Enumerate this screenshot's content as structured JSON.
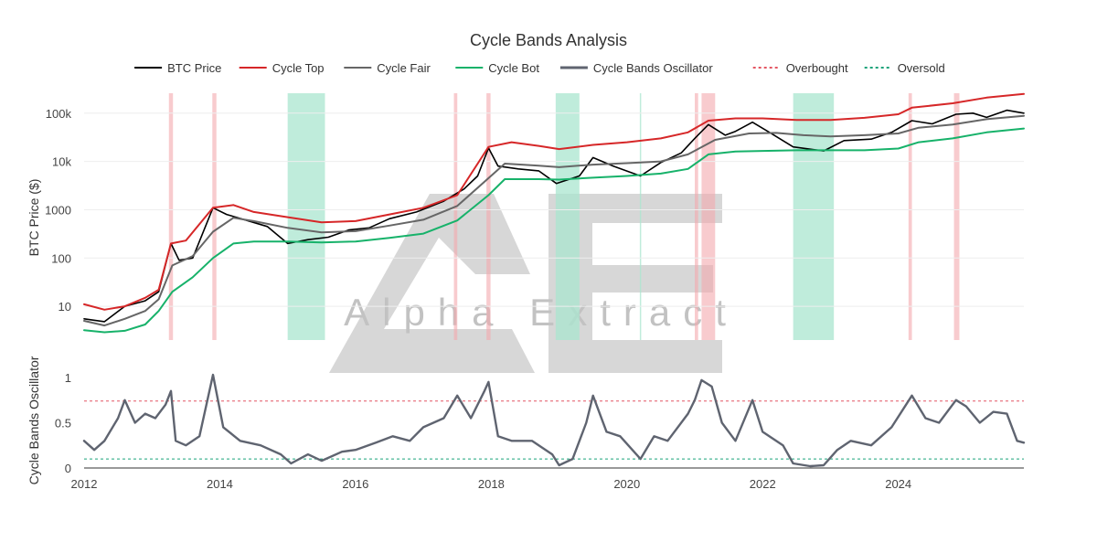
{
  "chart_data": {
    "type": "line",
    "title": "Cycle Bands Analysis",
    "colors": {
      "btc": "#000000",
      "top": "#d62728",
      "fair": "#666666",
      "bot": "#17b26a",
      "osc": "#5f6470",
      "overbought": "#e45763",
      "oversold": "#1aa37a",
      "overbought_shade": "#f4a9ad",
      "oversold_shade": "#a9e5cf",
      "watermark": "#bdbdbd"
    },
    "watermark_text": "Alpha Extract",
    "legend": [
      {
        "key": "btc",
        "label": "BTC Price",
        "style": "solid"
      },
      {
        "key": "top",
        "label": "Cycle Top",
        "style": "solid"
      },
      {
        "key": "fair",
        "label": "Cycle Fair",
        "style": "solid"
      },
      {
        "key": "bot",
        "label": "Cycle Bot",
        "style": "solid"
      },
      {
        "key": "osc",
        "label": "Cycle Bands Oscillator",
        "style": "solid"
      },
      {
        "key": "overbought",
        "label": "Overbought",
        "style": "dashed"
      },
      {
        "key": "oversold",
        "label": "Oversold",
        "style": "dashed"
      }
    ],
    "top_panel": {
      "ylabel": "BTC Price ($)",
      "yscale": "log",
      "ylim": [
        2,
        400000
      ],
      "yticks": [
        10,
        100,
        1000,
        10000,
        100000
      ],
      "yticklabels": [
        "10",
        "100",
        "1000",
        "10k",
        "100k"
      ]
    },
    "bottom_panel": {
      "ylabel": "Cycle Bands Oscillator",
      "ylim": [
        0,
        1.05
      ],
      "yticks": [
        0,
        0.5,
        1
      ],
      "yticklabels": [
        "0",
        "0.5",
        "1"
      ],
      "overbought_level": 0.74,
      "oversold_level": 0.1
    },
    "xlim": [
      2012.0,
      2025.85
    ],
    "xticks": [
      2012,
      2014,
      2016,
      2018,
      2020,
      2022,
      2024
    ],
    "xticklabels": [
      "2012",
      "2014",
      "2016",
      "2018",
      "2020",
      "2022",
      "2024"
    ],
    "series": [
      {
        "name": "BTC Price",
        "key": "btc",
        "points": [
          [
            2012.0,
            5.5
          ],
          [
            2012.3,
            4.8
          ],
          [
            2012.6,
            10
          ],
          [
            2012.9,
            13
          ],
          [
            2013.1,
            20
          ],
          [
            2013.28,
            200
          ],
          [
            2013.4,
            90
          ],
          [
            2013.6,
            100
          ],
          [
            2013.9,
            1100
          ],
          [
            2014.1,
            800
          ],
          [
            2014.4,
            600
          ],
          [
            2014.7,
            450
          ],
          [
            2015.0,
            200
          ],
          [
            2015.3,
            240
          ],
          [
            2015.6,
            270
          ],
          [
            2015.9,
            380
          ],
          [
            2016.2,
            420
          ],
          [
            2016.5,
            650
          ],
          [
            2016.9,
            900
          ],
          [
            2017.3,
            1500
          ],
          [
            2017.6,
            2700
          ],
          [
            2017.8,
            5000
          ],
          [
            2017.96,
            19000
          ],
          [
            2018.1,
            8000
          ],
          [
            2018.4,
            7000
          ],
          [
            2018.7,
            6400
          ],
          [
            2018.96,
            3500
          ],
          [
            2019.3,
            5000
          ],
          [
            2019.5,
            12000
          ],
          [
            2019.8,
            8000
          ],
          [
            2020.2,
            5000
          ],
          [
            2020.5,
            9500
          ],
          [
            2020.8,
            15000
          ],
          [
            2021.0,
            30000
          ],
          [
            2021.2,
            58000
          ],
          [
            2021.45,
            35000
          ],
          [
            2021.6,
            42000
          ],
          [
            2021.85,
            65000
          ],
          [
            2022.1,
            40000
          ],
          [
            2022.45,
            20000
          ],
          [
            2022.9,
            16500
          ],
          [
            2023.2,
            27000
          ],
          [
            2023.6,
            29000
          ],
          [
            2023.9,
            40000
          ],
          [
            2024.2,
            70000
          ],
          [
            2024.5,
            60000
          ],
          [
            2024.85,
            95000
          ],
          [
            2025.1,
            100000
          ],
          [
            2025.3,
            82000
          ],
          [
            2025.6,
            115000
          ],
          [
            2025.85,
            100000
          ]
        ]
      },
      {
        "name": "Cycle Top",
        "key": "top",
        "points": [
          [
            2012.0,
            11
          ],
          [
            2012.3,
            8.5
          ],
          [
            2012.6,
            10
          ],
          [
            2012.9,
            15
          ],
          [
            2013.1,
            22
          ],
          [
            2013.28,
            200
          ],
          [
            2013.5,
            230
          ],
          [
            2013.9,
            1100
          ],
          [
            2014.2,
            1250
          ],
          [
            2014.5,
            900
          ],
          [
            2015.0,
            700
          ],
          [
            2015.5,
            550
          ],
          [
            2016.0,
            580
          ],
          [
            2016.5,
            800
          ],
          [
            2017.0,
            1100
          ],
          [
            2017.5,
            2000
          ],
          [
            2017.96,
            20000
          ],
          [
            2018.3,
            25000
          ],
          [
            2018.7,
            21000
          ],
          [
            2019.0,
            18000
          ],
          [
            2019.5,
            22000
          ],
          [
            2020.0,
            25000
          ],
          [
            2020.5,
            30000
          ],
          [
            2020.9,
            40000
          ],
          [
            2021.2,
            70000
          ],
          [
            2021.6,
            78000
          ],
          [
            2022.0,
            78000
          ],
          [
            2022.5,
            72000
          ],
          [
            2023.0,
            72000
          ],
          [
            2023.5,
            80000
          ],
          [
            2024.0,
            95000
          ],
          [
            2024.2,
            130000
          ],
          [
            2024.8,
            160000
          ],
          [
            2025.3,
            210000
          ],
          [
            2025.85,
            250000
          ]
        ]
      },
      {
        "name": "Cycle Fair",
        "key": "fair",
        "points": [
          [
            2012.0,
            5
          ],
          [
            2012.3,
            4
          ],
          [
            2012.6,
            5.5
          ],
          [
            2012.9,
            8
          ],
          [
            2013.1,
            14
          ],
          [
            2013.3,
            70
          ],
          [
            2013.6,
            110
          ],
          [
            2013.9,
            350
          ],
          [
            2014.2,
            680
          ],
          [
            2014.5,
            580
          ],
          [
            2015.0,
            420
          ],
          [
            2015.5,
            340
          ],
          [
            2016.0,
            360
          ],
          [
            2016.5,
            470
          ],
          [
            2017.0,
            620
          ],
          [
            2017.5,
            1200
          ],
          [
            2017.96,
            4500
          ],
          [
            2018.2,
            9000
          ],
          [
            2018.7,
            8200
          ],
          [
            2019.0,
            7600
          ],
          [
            2019.5,
            8600
          ],
          [
            2020.0,
            9200
          ],
          [
            2020.5,
            10000
          ],
          [
            2020.9,
            14000
          ],
          [
            2021.3,
            28000
          ],
          [
            2021.8,
            38000
          ],
          [
            2022.2,
            39000
          ],
          [
            2022.6,
            35000
          ],
          [
            2023.0,
            33000
          ],
          [
            2023.5,
            35000
          ],
          [
            2024.0,
            38000
          ],
          [
            2024.3,
            50000
          ],
          [
            2024.8,
            58000
          ],
          [
            2025.3,
            75000
          ],
          [
            2025.85,
            88000
          ]
        ]
      },
      {
        "name": "Cycle Bot",
        "key": "bot",
        "points": [
          [
            2012.0,
            3.2
          ],
          [
            2012.3,
            2.9
          ],
          [
            2012.6,
            3.1
          ],
          [
            2012.9,
            4.2
          ],
          [
            2013.1,
            8
          ],
          [
            2013.3,
            20
          ],
          [
            2013.6,
            40
          ],
          [
            2013.9,
            100
          ],
          [
            2014.2,
            200
          ],
          [
            2014.5,
            220
          ],
          [
            2015.0,
            220
          ],
          [
            2015.5,
            210
          ],
          [
            2016.0,
            220
          ],
          [
            2016.5,
            260
          ],
          [
            2017.0,
            320
          ],
          [
            2017.5,
            600
          ],
          [
            2017.96,
            2000
          ],
          [
            2018.2,
            4300
          ],
          [
            2018.7,
            4300
          ],
          [
            2019.0,
            4200
          ],
          [
            2019.5,
            4600
          ],
          [
            2020.0,
            5000
          ],
          [
            2020.5,
            5600
          ],
          [
            2020.9,
            7000
          ],
          [
            2021.2,
            14000
          ],
          [
            2021.6,
            16000
          ],
          [
            2022.0,
            16500
          ],
          [
            2022.5,
            17000
          ],
          [
            2023.0,
            17000
          ],
          [
            2023.5,
            17000
          ],
          [
            2024.0,
            18500
          ],
          [
            2024.3,
            25000
          ],
          [
            2024.8,
            30000
          ],
          [
            2025.3,
            40000
          ],
          [
            2025.85,
            48000
          ]
        ]
      },
      {
        "name": "Cycle Bands Oscillator",
        "key": "osc",
        "points": [
          [
            2012.0,
            0.3
          ],
          [
            2012.15,
            0.2
          ],
          [
            2012.3,
            0.3
          ],
          [
            2012.5,
            0.55
          ],
          [
            2012.6,
            0.75
          ],
          [
            2012.75,
            0.5
          ],
          [
            2012.9,
            0.6
          ],
          [
            2013.05,
            0.55
          ],
          [
            2013.2,
            0.7
          ],
          [
            2013.28,
            0.85
          ],
          [
            2013.35,
            0.3
          ],
          [
            2013.5,
            0.25
          ],
          [
            2013.7,
            0.35
          ],
          [
            2013.9,
            1.03
          ],
          [
            2014.05,
            0.45
          ],
          [
            2014.3,
            0.3
          ],
          [
            2014.6,
            0.25
          ],
          [
            2014.9,
            0.15
          ],
          [
            2015.05,
            0.05
          ],
          [
            2015.3,
            0.15
          ],
          [
            2015.5,
            0.08
          ],
          [
            2015.8,
            0.18
          ],
          [
            2016.0,
            0.2
          ],
          [
            2016.3,
            0.28
          ],
          [
            2016.55,
            0.35
          ],
          [
            2016.8,
            0.3
          ],
          [
            2017.0,
            0.45
          ],
          [
            2017.3,
            0.55
          ],
          [
            2017.5,
            0.8
          ],
          [
            2017.7,
            0.55
          ],
          [
            2017.9,
            0.85
          ],
          [
            2017.96,
            0.95
          ],
          [
            2018.1,
            0.35
          ],
          [
            2018.3,
            0.3
          ],
          [
            2018.6,
            0.3
          ],
          [
            2018.9,
            0.15
          ],
          [
            2019.0,
            0.03
          ],
          [
            2019.2,
            0.1
          ],
          [
            2019.4,
            0.5
          ],
          [
            2019.5,
            0.8
          ],
          [
            2019.7,
            0.4
          ],
          [
            2019.9,
            0.35
          ],
          [
            2020.2,
            0.1
          ],
          [
            2020.4,
            0.35
          ],
          [
            2020.6,
            0.3
          ],
          [
            2020.9,
            0.6
          ],
          [
            2021.0,
            0.75
          ],
          [
            2021.1,
            0.97
          ],
          [
            2021.25,
            0.9
          ],
          [
            2021.4,
            0.5
          ],
          [
            2021.6,
            0.3
          ],
          [
            2021.85,
            0.75
          ],
          [
            2022.0,
            0.4
          ],
          [
            2022.3,
            0.25
          ],
          [
            2022.45,
            0.05
          ],
          [
            2022.7,
            0.02
          ],
          [
            2022.9,
            0.03
          ],
          [
            2023.1,
            0.2
          ],
          [
            2023.3,
            0.3
          ],
          [
            2023.6,
            0.25
          ],
          [
            2023.9,
            0.45
          ],
          [
            2024.2,
            0.8
          ],
          [
            2024.4,
            0.55
          ],
          [
            2024.6,
            0.5
          ],
          [
            2024.85,
            0.75
          ],
          [
            2025.0,
            0.68
          ],
          [
            2025.2,
            0.5
          ],
          [
            2025.4,
            0.62
          ],
          [
            2025.6,
            0.6
          ],
          [
            2025.75,
            0.3
          ],
          [
            2025.85,
            0.28
          ]
        ]
      }
    ],
    "shaded_regions": [
      {
        "type": "overbought",
        "ranges": [
          [
            2013.25,
            2013.31
          ],
          [
            2013.89,
            2013.95
          ],
          [
            2017.45,
            2017.5
          ],
          [
            2017.93,
            2017.99
          ],
          [
            2021.0,
            2021.05
          ],
          [
            2021.1,
            2021.3
          ],
          [
            2024.15,
            2024.2
          ],
          [
            2024.82,
            2024.9
          ]
        ]
      },
      {
        "type": "oversold",
        "ranges": [
          [
            2015.0,
            2015.55
          ],
          [
            2018.95,
            2019.3
          ],
          [
            2020.19,
            2020.21
          ],
          [
            2022.45,
            2023.05
          ]
        ]
      }
    ]
  }
}
